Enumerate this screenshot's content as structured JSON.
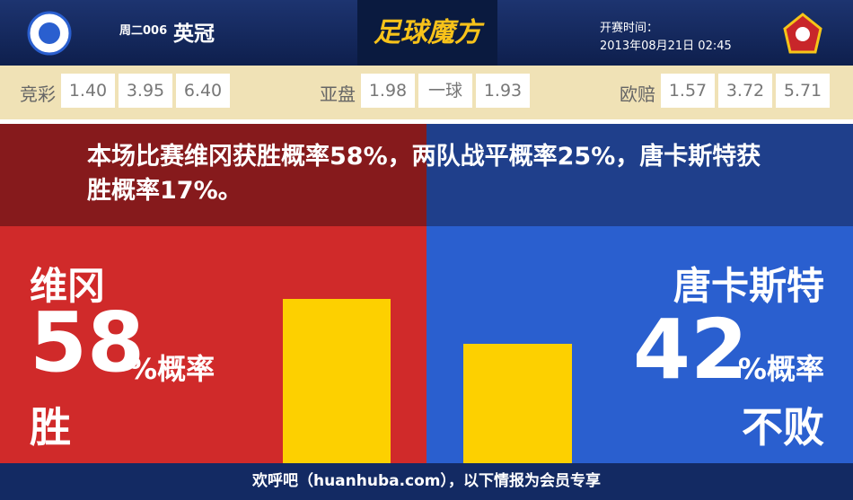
{
  "header": {
    "match_no": "周二006",
    "league": "英冠",
    "brand": "足球魔方",
    "time_label": "开赛时间：",
    "time": "2013年08月21日 02:45"
  },
  "odds": [
    {
      "label": "竞彩",
      "values": [
        "1.40",
        "3.95",
        "6.40"
      ]
    },
    {
      "label": "亚盘",
      "values": [
        "1.98",
        "一球",
        "1.93"
      ]
    },
    {
      "label": "欧赔",
      "values": [
        "1.57",
        "3.72",
        "5.71"
      ]
    }
  ],
  "summary": "本场比赛维冈获胜概率58%，两队战平概率25%，唐卡斯特获胜概率17%。",
  "home": {
    "team": "维冈",
    "percent": 58,
    "unit": "%概率",
    "outcome": "胜"
  },
  "away": {
    "team": "唐卡斯特",
    "percent": 42,
    "unit": "%概率",
    "outcome": "不败"
  },
  "footer": "欢呼吧（huanhuba.com），以下情报为会员专享"
}
